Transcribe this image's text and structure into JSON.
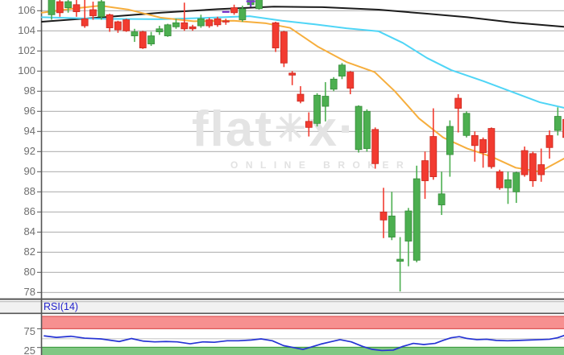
{
  "watermark": {
    "brand_prefix": "flat",
    "brand_star": "✳",
    "brand_suffix": "x",
    "brand_dot": "·",
    "subtitle": "ONLINE BROKER"
  },
  "rsi_panel": {
    "label": "RSI(14)",
    "overbought_label": "75",
    "oversold_label": "25",
    "overbought": 75,
    "oversold": 25
  },
  "price_axis": {
    "labels": [
      "106",
      "104",
      "102",
      "100",
      "98",
      "96",
      "94",
      "92",
      "90",
      "88",
      "86",
      "84",
      "82",
      "80",
      "78"
    ],
    "max": 106,
    "min": 78,
    "step": 2
  },
  "colors": {
    "up_fill": "#4caf50",
    "up_border": "#358a39",
    "down_fill": "#f23b30",
    "down_border": "#c9281f",
    "ma_long": "#1c1c1c",
    "ma_mid": "#4fd5f6",
    "ma_short": "#f6ae3d",
    "marker": "#7a3bd0",
    "grid": "#aaaaaa",
    "axis": "#555555",
    "label": "#6e6e6e",
    "rsi_line": "#2533d4",
    "rsi_label": "#2222cc",
    "band_red_fill": "#f79090",
    "band_red_border": "#dd5858",
    "band_green_fill": "#80c783",
    "band_green_border": "#3f9e42",
    "panel_gap": "#f1f1f1",
    "watermark": "#e4e4e4"
  },
  "chart_data": {
    "type": "candlestick",
    "title": "",
    "xlabel": "",
    "ylabel": "",
    "y_range_visible": [
      78,
      107.06
    ],
    "grid": true,
    "note": "daily OHLC chart with 3 moving averages, flatex watermark, RSI(14) subpanel; top of chart cropped",
    "candle_fields": [
      "x",
      "open",
      "high",
      "low",
      "close"
    ],
    "candles": [
      [
        64,
        105.6,
        107.3,
        105.1,
        107.3
      ],
      [
        74.3,
        106.9,
        107.3,
        105.4,
        105.8
      ],
      [
        84.6,
        106.3,
        107.1,
        105.8,
        106.9
      ],
      [
        94.9,
        106.6,
        107.2,
        105.4,
        105.9
      ],
      [
        105.2,
        105.2,
        107.1,
        104.3,
        104.5
      ],
      [
        115.5,
        106.1,
        106.9,
        105.1,
        105.5
      ],
      [
        125.8,
        105.4,
        107.3,
        105.1,
        106.9
      ],
      [
        136.1,
        105.6,
        105.7,
        103.9,
        104.3
      ],
      [
        146.4,
        104.9,
        105.0,
        103.8,
        104.1
      ],
      [
        156.7,
        105.1,
        105.2,
        103.9,
        104.0
      ],
      [
        167,
        103.5,
        104.2,
        102.9,
        103.9
      ],
      [
        177.3,
        103.9,
        104.0,
        102.2,
        102.3
      ],
      [
        187.6,
        102.7,
        103.9,
        102.5,
        103.5
      ],
      [
        197.9,
        103.9,
        104.5,
        103.6,
        104.2
      ],
      [
        208.2,
        103.5,
        104.7,
        103.4,
        104.6
      ],
      [
        218.5,
        104.4,
        105.2,
        104.2,
        104.8
      ],
      [
        228.8,
        104.8,
        106.8,
        104.0,
        104.2
      ],
      [
        239.1,
        104.4,
        104.6,
        104.0,
        104.2
      ],
      [
        249.4,
        104.5,
        105.6,
        104.3,
        105.2
      ],
      [
        259.7,
        105.1,
        105.3,
        104.3,
        104.5
      ],
      [
        270,
        105.2,
        105.4,
        104.4,
        104.6
      ],
      [
        280.3,
        105.0,
        105.2,
        104.6,
        104.9
      ],
      [
        290.6,
        106.3,
        106.6,
        105.6,
        105.8
      ],
      [
        300.9,
        105.1,
        106.5,
        104.9,
        106.2
      ],
      [
        311.2,
        106.6,
        107.3,
        106.4,
        107.2
      ],
      [
        321.5,
        106.2,
        107.3,
        106.1,
        107.2
      ],
      [
        342.1,
        104.8,
        104.9,
        101.9,
        102.3
      ],
      [
        352.4,
        103.9,
        104.0,
        100.4,
        100.8
      ],
      [
        362.7,
        99.8,
        100.0,
        98.6,
        99.6
      ],
      [
        373,
        97.7,
        98.5,
        96.8,
        97.0
      ],
      [
        383.3,
        95.0,
        95.9,
        93.5,
        94.4
      ],
      [
        393.6,
        94.8,
        97.8,
        94.5,
        97.6
      ],
      [
        403.9,
        96.5,
        98.9,
        95.0,
        97.5
      ],
      [
        414.2,
        98.2,
        99.4,
        98.0,
        99.2
      ],
      [
        424.5,
        99.5,
        100.8,
        99.2,
        100.6
      ],
      [
        434.8,
        99.9,
        100.0,
        97.7,
        98.3
      ],
      [
        445.1,
        92.2,
        96.6,
        91.9,
        96.5
      ],
      [
        455.4,
        92.3,
        96.2,
        92.0,
        96.0
      ],
      [
        465.7,
        94.2,
        94.4,
        90.3,
        90.8
      ],
      [
        476,
        86.0,
        88.4,
        83.4,
        85.2
      ],
      [
        486.3,
        83.5,
        88.0,
        83.2,
        85.6
      ],
      [
        496.6,
        81.1,
        83.5,
        78.1,
        81.3
      ],
      [
        506.9,
        83.1,
        86.4,
        80.6,
        86.1
      ],
      [
        517.2,
        81.2,
        90.6,
        81.0,
        89.3
      ],
      [
        527.5,
        91.1,
        92.0,
        87.3,
        89.1
      ],
      [
        537.8,
        93.5,
        96.3,
        89.2,
        89.5
      ],
      [
        548.1,
        86.7,
        90.0,
        85.7,
        87.8
      ],
      [
        558.4,
        91.7,
        95.1,
        89.5,
        94.5
      ],
      [
        568.7,
        97.3,
        97.7,
        93.9,
        96.3
      ],
      [
        579,
        93.6,
        96.0,
        93.4,
        95.8
      ],
      [
        589.3,
        93.6,
        94.0,
        91.0,
        92.6
      ],
      [
        599.6,
        93.2,
        93.4,
        90.4,
        91.9
      ],
      [
        609.9,
        94.3,
        94.4,
        90.3,
        90.5
      ],
      [
        620.2,
        90.0,
        90.2,
        88.2,
        88.4
      ],
      [
        630.5,
        88.4,
        90.0,
        86.8,
        89.2
      ],
      [
        640.8,
        88.0,
        90.0,
        86.9,
        89.9
      ],
      [
        651.1,
        92.1,
        92.5,
        89.5,
        89.7
      ],
      [
        661.4,
        91.8,
        92.0,
        88.5,
        89.1
      ],
      [
        671.7,
        90.7,
        92.3,
        89.0,
        89.7
      ],
      [
        682,
        93.6,
        94.1,
        91.3,
        92.4
      ],
      [
        692.3,
        94.1,
        96.4,
        93.6,
        95.5
      ],
      [
        702.6,
        95.2,
        95.9,
        93.0,
        93.4
      ]
    ],
    "moving_averages": [
      {
        "name": "ma-long-black",
        "color_key": "ma_long",
        "width": 2,
        "points": [
          [
            52,
            104.9
          ],
          [
            120,
            105.3
          ],
          [
            200,
            105.8
          ],
          [
            270,
            106.15
          ],
          [
            340,
            106.4
          ],
          [
            400,
            106.35
          ],
          [
            470,
            106.1
          ],
          [
            530,
            105.7
          ],
          [
            580,
            105.35
          ],
          [
            640,
            104.8
          ],
          [
            700,
            104.4
          ]
        ]
      },
      {
        "name": "ma-mid-cyan",
        "color_key": "ma_mid",
        "width": 2,
        "points": [
          [
            52,
            105.35
          ],
          [
            120,
            105.2
          ],
          [
            200,
            105.15
          ],
          [
            260,
            105.3
          ],
          [
            310,
            105.45
          ],
          [
            350,
            105.0
          ],
          [
            390,
            104.65
          ],
          [
            430,
            104.25
          ],
          [
            470,
            103.95
          ],
          [
            500,
            102.8
          ],
          [
            530,
            101.3
          ],
          [
            560,
            100.1
          ],
          [
            600,
            99.0
          ],
          [
            640,
            97.8
          ],
          [
            670,
            96.9
          ],
          [
            700,
            96.35
          ]
        ]
      },
      {
        "name": "ma-short-orange",
        "color_key": "ma_short",
        "width": 2,
        "points": [
          [
            52,
            105.8
          ],
          [
            90,
            106.2
          ],
          [
            125,
            106.5
          ],
          [
            160,
            106.1
          ],
          [
            200,
            105.3
          ],
          [
            240,
            104.95
          ],
          [
            290,
            105.0
          ],
          [
            330,
            104.75
          ],
          [
            360,
            104.3
          ],
          [
            395,
            102.4
          ],
          [
            430,
            100.9
          ],
          [
            465,
            99.9
          ],
          [
            490,
            98.0
          ],
          [
            520,
            95.3
          ],
          [
            550,
            93.4
          ],
          [
            580,
            92.3
          ],
          [
            610,
            91.5
          ],
          [
            640,
            90.4
          ],
          [
            670,
            90.0
          ],
          [
            700,
            91.3
          ]
        ]
      }
    ],
    "markers": [
      {
        "x": 280.3,
        "price": 105.9,
        "shape": "dash"
      },
      {
        "x": 311.2,
        "price": 106.95,
        "shape": "flag"
      }
    ],
    "rsi_series": [
      [
        55,
        56
      ],
      [
        70,
        52
      ],
      [
        88,
        55
      ],
      [
        105,
        50
      ],
      [
        125,
        48
      ],
      [
        148,
        41
      ],
      [
        163,
        49
      ],
      [
        178,
        42
      ],
      [
        192,
        40
      ],
      [
        206,
        41
      ],
      [
        220,
        40
      ],
      [
        236,
        35
      ],
      [
        252,
        40
      ],
      [
        266,
        39
      ],
      [
        282,
        43
      ],
      [
        296,
        43
      ],
      [
        312,
        45
      ],
      [
        324,
        48
      ],
      [
        338,
        43
      ],
      [
        352,
        30
      ],
      [
        364,
        25
      ],
      [
        376,
        20
      ],
      [
        386,
        26
      ],
      [
        398,
        34
      ],
      [
        410,
        40
      ],
      [
        422,
        46
      ],
      [
        436,
        40
      ],
      [
        450,
        28
      ],
      [
        462,
        20
      ],
      [
        474,
        17
      ],
      [
        488,
        18
      ],
      [
        500,
        28
      ],
      [
        513,
        36
      ],
      [
        526,
        33
      ],
      [
        540,
        36
      ],
      [
        550,
        44
      ],
      [
        560,
        51
      ],
      [
        570,
        54
      ],
      [
        580,
        49
      ],
      [
        592,
        46
      ],
      [
        604,
        47
      ],
      [
        616,
        44
      ],
      [
        630,
        43
      ],
      [
        644,
        44
      ],
      [
        658,
        45
      ],
      [
        670,
        46
      ],
      [
        682,
        47
      ],
      [
        692,
        51
      ],
      [
        700,
        57
      ]
    ]
  }
}
